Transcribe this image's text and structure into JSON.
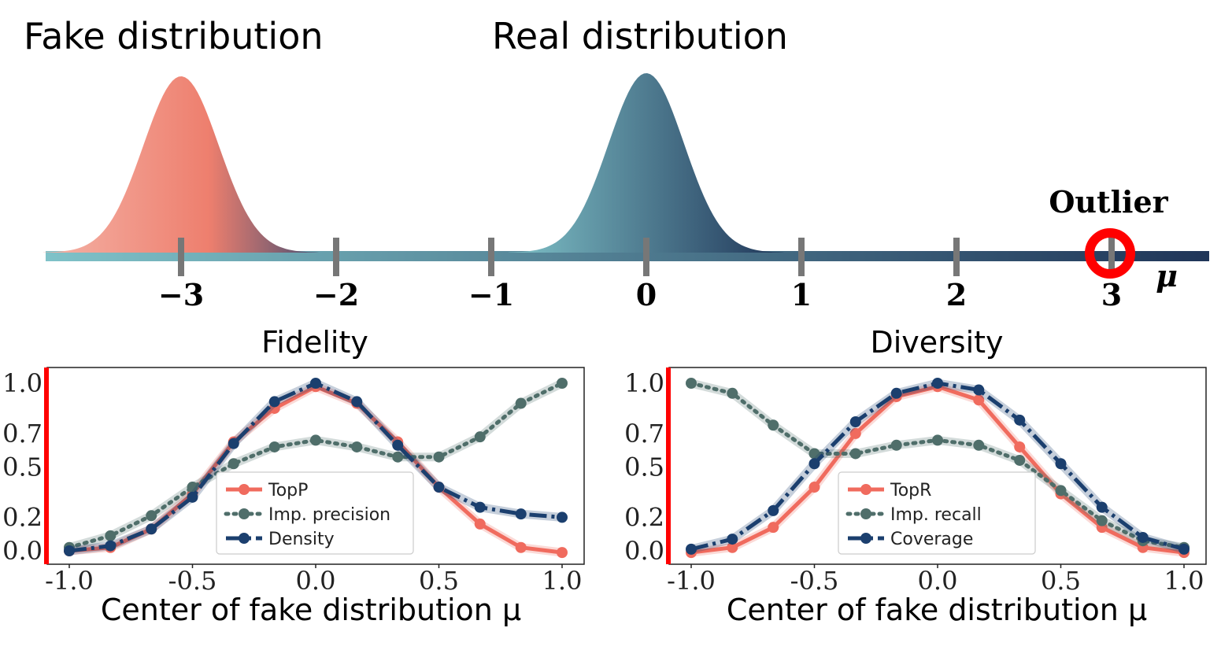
{
  "top": {
    "fake_label": "Fake distribution",
    "real_label": "Real distribution",
    "outlier_label": "Outlier",
    "axis_symbol": "μ",
    "ticks": [
      {
        "value": -3,
        "label": "−3"
      },
      {
        "value": -2,
        "label": "−2"
      },
      {
        "value": -1,
        "label": "−1"
      },
      {
        "value": 0,
        "label": "0"
      },
      {
        "value": 1,
        "label": "1"
      },
      {
        "value": 2,
        "label": "2"
      },
      {
        "value": 3,
        "label": "3"
      }
    ],
    "fake_center": -3,
    "real_center": 0,
    "outlier_position": 3,
    "colors": {
      "fake_light": "#f4b2a6",
      "fake_dark": "#4a4f72",
      "fake_main": "#ee7f6e",
      "real_light": "#7fc2c8",
      "real_dark": "#1f3558",
      "outlier_ring": "#ff0000",
      "tick": "#777777"
    }
  },
  "chart_data": [
    {
      "type": "line",
      "title": "Fidelity",
      "xlabel": "Center of fake distribution μ",
      "ylabel": "",
      "xlim": [
        -1.0,
        1.0
      ],
      "ylim": [
        0.0,
        1.0
      ],
      "xticks": [
        "-1.0",
        "-0.5",
        "0.0",
        "0.5",
        "1.0"
      ],
      "yticks": [
        "0.0",
        "0.2",
        "0.5",
        "0.7",
        "1.0"
      ],
      "ytick_values": [
        0.0,
        0.2,
        0.5,
        0.7,
        1.0
      ],
      "legend": "lower-center",
      "x": [
        -1.0,
        -0.833,
        -0.667,
        -0.5,
        -0.333,
        -0.167,
        0.0,
        0.167,
        0.333,
        0.5,
        0.667,
        0.833,
        1.0
      ],
      "series": [
        {
          "name": "TopP",
          "color": "#f06b5e",
          "style": "solid",
          "values": [
            0.0,
            0.02,
            0.13,
            0.34,
            0.65,
            0.85,
            0.98,
            0.88,
            0.65,
            0.38,
            0.16,
            0.02,
            -0.01
          ]
        },
        {
          "name": "Imp. precision",
          "color": "#4f6e6a",
          "style": "dotted",
          "values": [
            0.02,
            0.09,
            0.21,
            0.38,
            0.52,
            0.62,
            0.66,
            0.62,
            0.56,
            0.56,
            0.68,
            0.88,
            1.0
          ]
        },
        {
          "name": "Density",
          "color": "#1b3f6e",
          "style": "dashdot",
          "values": [
            0.0,
            0.03,
            0.13,
            0.32,
            0.64,
            0.89,
            1.0,
            0.89,
            0.63,
            0.38,
            0.26,
            0.22,
            0.2
          ]
        }
      ]
    },
    {
      "type": "line",
      "title": "Diversity",
      "xlabel": "Center of fake distribution μ",
      "ylabel": "",
      "xlim": [
        -1.0,
        1.0
      ],
      "ylim": [
        0.0,
        1.0
      ],
      "xticks": [
        "-1.0",
        "-0.5",
        "0.0",
        "0.5",
        "1.0"
      ],
      "yticks": [
        "0.0",
        "0.2",
        "0.5",
        "0.7",
        "1.0"
      ],
      "ytick_values": [
        0.0,
        0.2,
        0.5,
        0.7,
        1.0
      ],
      "legend": "lower-center",
      "x": [
        -1.0,
        -0.833,
        -0.667,
        -0.5,
        -0.333,
        -0.167,
        0.0,
        0.167,
        0.333,
        0.5,
        0.667,
        0.833,
        1.0
      ],
      "series": [
        {
          "name": "TopR",
          "color": "#f06b5e",
          "style": "solid",
          "values": [
            -0.01,
            0.02,
            0.14,
            0.38,
            0.7,
            0.92,
            0.98,
            0.9,
            0.62,
            0.34,
            0.14,
            0.02,
            -0.01
          ]
        },
        {
          "name": "Imp. recall",
          "color": "#4f6e6a",
          "style": "dotted",
          "values": [
            1.0,
            0.94,
            0.75,
            0.58,
            0.58,
            0.63,
            0.66,
            0.63,
            0.54,
            0.36,
            0.18,
            0.06,
            0.02
          ]
        },
        {
          "name": "Coverage",
          "color": "#1b3f6e",
          "style": "dashdot",
          "values": [
            0.01,
            0.07,
            0.24,
            0.52,
            0.77,
            0.94,
            1.0,
            0.96,
            0.78,
            0.52,
            0.26,
            0.08,
            0.01
          ]
        }
      ]
    }
  ]
}
